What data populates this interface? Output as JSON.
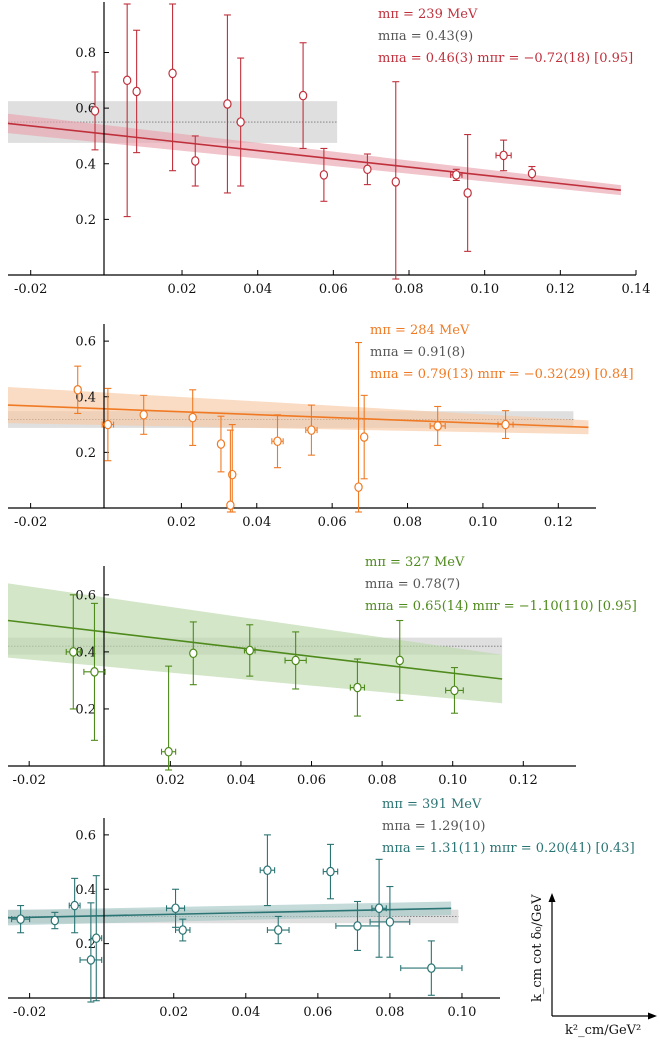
{
  "chart_data": [
    {
      "type": "scatter",
      "color": "#c0303c",
      "band_color": "#e8a5ae",
      "xlim": [
        -0.026,
        0.14
      ],
      "ylim": [
        0.0,
        0.96
      ],
      "x_ticks": [
        "-0.02",
        "0.02",
        "0.04",
        "0.06",
        "0.08",
        "0.10",
        "0.12",
        "0.14"
      ],
      "y_ticks": [
        "0.2",
        "0.4",
        "0.6",
        "0.8"
      ],
      "annotations": {
        "line1": "mπ = 239 MeV",
        "line2": "mπa = 0.43(9)",
        "line3": "mπa = 0.46(3)    mπr = −0.72(18)    [0.95]"
      },
      "gray_band": {
        "x0": -0.026,
        "x1": 0.061,
        "center": 0.55,
        "half": 0.075
      },
      "fit": {
        "x0": -0.026,
        "x1": 0.136,
        "y0": 0.545,
        "y1": 0.305,
        "w0": 0.035,
        "w1": 0.018
      },
      "points": [
        {
          "x": -0.003,
          "y": 0.59,
          "ey": 0.14,
          "ex": 0.0
        },
        {
          "x": 0.0055,
          "y": 0.7,
          "ey": 0.49,
          "ex": 0.0
        },
        {
          "x": 0.008,
          "y": 0.66,
          "ey": 0.22,
          "ex": 0.0
        },
        {
          "x": 0.0175,
          "y": 0.725,
          "ey": 0.35,
          "ex": 0.0
        },
        {
          "x": 0.0235,
          "y": 0.41,
          "ey": 0.09,
          "ex": 0.0
        },
        {
          "x": 0.032,
          "y": 0.615,
          "ey": 0.32,
          "ex": 0.0
        },
        {
          "x": 0.0355,
          "y": 0.55,
          "ey": 0.23,
          "ex": 0.0
        },
        {
          "x": 0.052,
          "y": 0.645,
          "ey": 0.19,
          "ex": 0.0
        },
        {
          "x": 0.0575,
          "y": 0.36,
          "ey": 0.095,
          "ex": 0.0
        },
        {
          "x": 0.069,
          "y": 0.38,
          "ey": 0.055,
          "ex": 0.0
        },
        {
          "x": 0.0765,
          "y": 0.335,
          "ey": 0.36,
          "ex": 0.0
        },
        {
          "x": 0.0925,
          "y": 0.36,
          "ey": 0.02,
          "ex": 0.0015
        },
        {
          "x": 0.0955,
          "y": 0.295,
          "ey": 0.21,
          "ex": 0.0
        },
        {
          "x": 0.105,
          "y": 0.43,
          "ey": 0.055,
          "ex": 0.002
        },
        {
          "x": 0.1125,
          "y": 0.365,
          "ey": 0.025,
          "ex": 0.0
        }
      ]
    },
    {
      "type": "scatter",
      "color": "#f07a24",
      "band_color": "#f8c9a4",
      "xlim": [
        -0.026,
        0.13
      ],
      "ylim": [
        0.0,
        0.64
      ],
      "x_ticks": [
        "-0.02",
        "0.02",
        "0.04",
        "0.06",
        "0.08",
        "0.10",
        "0.12"
      ],
      "y_ticks": [
        "0.2",
        "0.4",
        "0.6"
      ],
      "annotations": {
        "line1": "mπ = 284 MeV",
        "line2": "mπa = 0.91(8)",
        "line3": "mπa = 0.79(13)    mπr = −0.32(29)    [0.84]"
      },
      "gray_band": {
        "x0": -0.026,
        "x1": 0.124,
        "center": 0.318,
        "half": 0.03
      },
      "fit": {
        "x0": -0.026,
        "x1": 0.128,
        "y0": 0.37,
        "y1": 0.29,
        "w0": 0.065,
        "w1": 0.025
      },
      "points": [
        {
          "x": -0.0075,
          "y": 0.425,
          "ey": 0.085,
          "ex": 0.0
        },
        {
          "x": 0.0005,
          "y": 0.3,
          "ey": 0.13,
          "ex": 0.0015
        },
        {
          "x": 0.01,
          "y": 0.335,
          "ey": 0.07,
          "ex": 0.0
        },
        {
          "x": 0.023,
          "y": 0.325,
          "ey": 0.1,
          "ex": 0.0
        },
        {
          "x": 0.0305,
          "y": 0.23,
          "ey": 0.1,
          "ex": 0.0
        },
        {
          "x": 0.0335,
          "y": 0.12,
          "ey": 0.18,
          "ex": 0.0
        },
        {
          "x": 0.033,
          "y": 0.01,
          "ey": 0.27,
          "ex": 0.0
        },
        {
          "x": 0.0455,
          "y": 0.24,
          "ey": 0.095,
          "ex": 0.0015
        },
        {
          "x": 0.0545,
          "y": 0.28,
          "ey": 0.09,
          "ex": 0.0015
        },
        {
          "x": 0.067,
          "y": 0.075,
          "ey": 0.52,
          "ex": 0.0
        },
        {
          "x": 0.0685,
          "y": 0.255,
          "ey": 0.15,
          "ex": 0.0
        },
        {
          "x": 0.088,
          "y": 0.295,
          "ey": 0.07,
          "ex": 0.002
        },
        {
          "x": 0.106,
          "y": 0.3,
          "ey": 0.05,
          "ex": 0.002
        }
      ]
    },
    {
      "type": "scatter",
      "color": "#4e8a1c",
      "band_color": "#bcd9ab",
      "xlim": [
        -0.026,
        0.127
      ],
      "ylim": [
        0.0,
        0.68
      ],
      "x_ticks": [
        "-0.02",
        "0.02",
        "0.04",
        "0.06",
        "0.08",
        "0.10",
        "0.12"
      ],
      "y_ticks": [
        "0.2",
        "0.4",
        "0.6"
      ],
      "annotations": {
        "line1": "mπ = 327 MeV",
        "line2": "mπa = 0.78(7)",
        "line3": "mπa = 0.65(14)    mπr = −1.10(110)    [0.95]"
      },
      "gray_band": {
        "x0": -0.026,
        "x1": 0.114,
        "center": 0.42,
        "half": 0.03
      },
      "fit": {
        "x0": -0.026,
        "x1": 0.114,
        "y0": 0.51,
        "y1": 0.305,
        "w0": 0.13,
        "w1": 0.085
      },
      "points": [
        {
          "x": -0.0075,
          "y": 0.4,
          "ey": 0.2,
          "ex": 0.002
        },
        {
          "x": -0.0015,
          "y": 0.33,
          "ey": 0.24,
          "ex": 0.003
        },
        {
          "x": 0.0195,
          "y": 0.05,
          "ey": 0.3,
          "ex": 0.002
        },
        {
          "x": 0.0265,
          "y": 0.395,
          "ey": 0.11,
          "ex": 0.0
        },
        {
          "x": 0.0425,
          "y": 0.405,
          "ey": 0.09,
          "ex": 0.0015
        },
        {
          "x": 0.0555,
          "y": 0.37,
          "ey": 0.1,
          "ex": 0.003
        },
        {
          "x": 0.073,
          "y": 0.275,
          "ey": 0.1,
          "ex": 0.002
        },
        {
          "x": 0.085,
          "y": 0.37,
          "ey": 0.14,
          "ex": 0.0
        },
        {
          "x": 0.1005,
          "y": 0.265,
          "ey": 0.08,
          "ex": 0.0025
        }
      ]
    },
    {
      "type": "scatter",
      "color": "#2b7474",
      "band_color": "#a4c8c6",
      "xlim": [
        -0.026,
        0.11
      ],
      "ylim": [
        0.0,
        0.64
      ],
      "x_ticks": [
        "-0.02",
        "0.02",
        "0.04",
        "0.06",
        "0.08",
        "0.10"
      ],
      "y_ticks": [
        "0.2",
        "0.4",
        "0.6"
      ],
      "annotations": {
        "line1": "mπ = 391 MeV",
        "line2": "mπa = 1.29(10)",
        "line3": "mπa = 1.31(11)    mπr = 0.20(41)    [0.43]"
      },
      "gray_band": {
        "x0": -0.026,
        "x1": 0.099,
        "center": 0.3,
        "half": 0.025
      },
      "fit": {
        "x0": -0.026,
        "x1": 0.097,
        "y0": 0.295,
        "y1": 0.33,
        "w0": 0.028,
        "w1": 0.025
      },
      "points": [
        {
          "x": -0.0225,
          "y": 0.29,
          "ey": 0.05,
          "ex": 0.0025
        },
        {
          "x": -0.013,
          "y": 0.285,
          "ey": 0.03,
          "ex": 0.0
        },
        {
          "x": -0.0075,
          "y": 0.34,
          "ey": 0.1,
          "ex": 0.0015
        },
        {
          "x": -0.003,
          "y": 0.14,
          "ey": 0.21,
          "ex": 0.003
        },
        {
          "x": -0.0015,
          "y": 0.22,
          "ey": 0.23,
          "ex": 0.0015
        },
        {
          "x": 0.0205,
          "y": 0.33,
          "ey": 0.07,
          "ex": 0.0025
        },
        {
          "x": 0.0225,
          "y": 0.25,
          "ey": 0.04,
          "ex": 0.002
        },
        {
          "x": 0.046,
          "y": 0.47,
          "ey": 0.13,
          "ex": 0.002
        },
        {
          "x": 0.049,
          "y": 0.25,
          "ey": 0.05,
          "ex": 0.003
        },
        {
          "x": 0.0635,
          "y": 0.465,
          "ey": 0.1,
          "ex": 0.002
        },
        {
          "x": 0.071,
          "y": 0.265,
          "ey": 0.09,
          "ex": 0.006
        },
        {
          "x": 0.077,
          "y": 0.33,
          "ey": 0.18,
          "ex": 0.002
        },
        {
          "x": 0.08,
          "y": 0.28,
          "ey": 0.13,
          "ex": 0.0055
        },
        {
          "x": 0.0915,
          "y": 0.11,
          "ey": 0.1,
          "ex": 0.0085
        }
      ]
    }
  ],
  "legend_axes": {
    "ylabel": "k_cm cot δ₀/GeV",
    "xlabel": "k²_cm/GeV²"
  }
}
